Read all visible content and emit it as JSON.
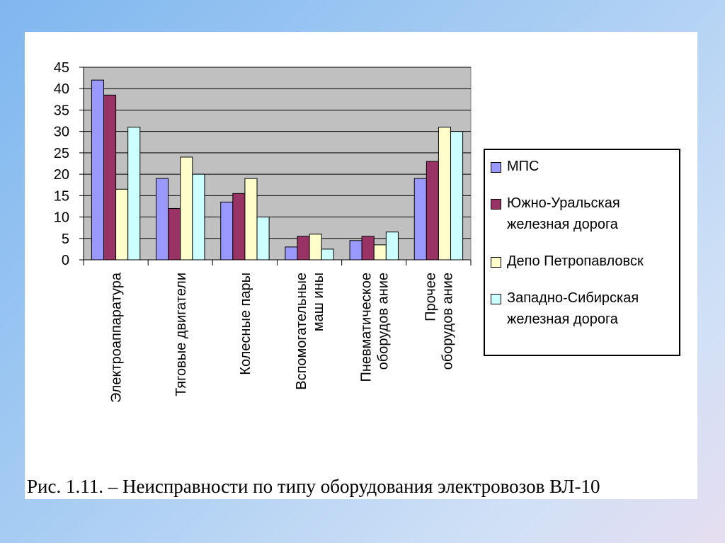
{
  "chart_data": {
    "type": "bar",
    "caption": "Рис. 1.11. – Неисправности по типу оборудования электровозов ВЛ-10",
    "categories": [
      "Электроаппаратура",
      "Тяговые двигатели",
      "Колесные пары",
      "Вспомогательные\nмаш ины",
      "Пневматическое\nоборудов ание",
      "Прочее\nоборудов ание"
    ],
    "series": [
      {
        "name": "МПС",
        "color": "#9999ff",
        "values": [
          42,
          19,
          13.5,
          3,
          4.5,
          19
        ]
      },
      {
        "name": "Южно-Уральская железная дорога",
        "color": "#993366",
        "values": [
          38.5,
          12,
          15.5,
          5.5,
          5.5,
          23
        ]
      },
      {
        "name": "Депо Петропавловск",
        "color": "#ffffcc",
        "values": [
          16.5,
          24,
          19,
          6,
          3.5,
          31
        ]
      },
      {
        "name": "Западно-Сибирская железная дорога",
        "color": "#ccffff",
        "values": [
          31,
          20,
          10,
          2.5,
          6.5,
          30
        ]
      }
    ],
    "ylim": [
      0,
      45
    ],
    "yticks": [
      0,
      5,
      10,
      15,
      20,
      25,
      30,
      35,
      40,
      45
    ],
    "grid": true,
    "legend": "right"
  }
}
